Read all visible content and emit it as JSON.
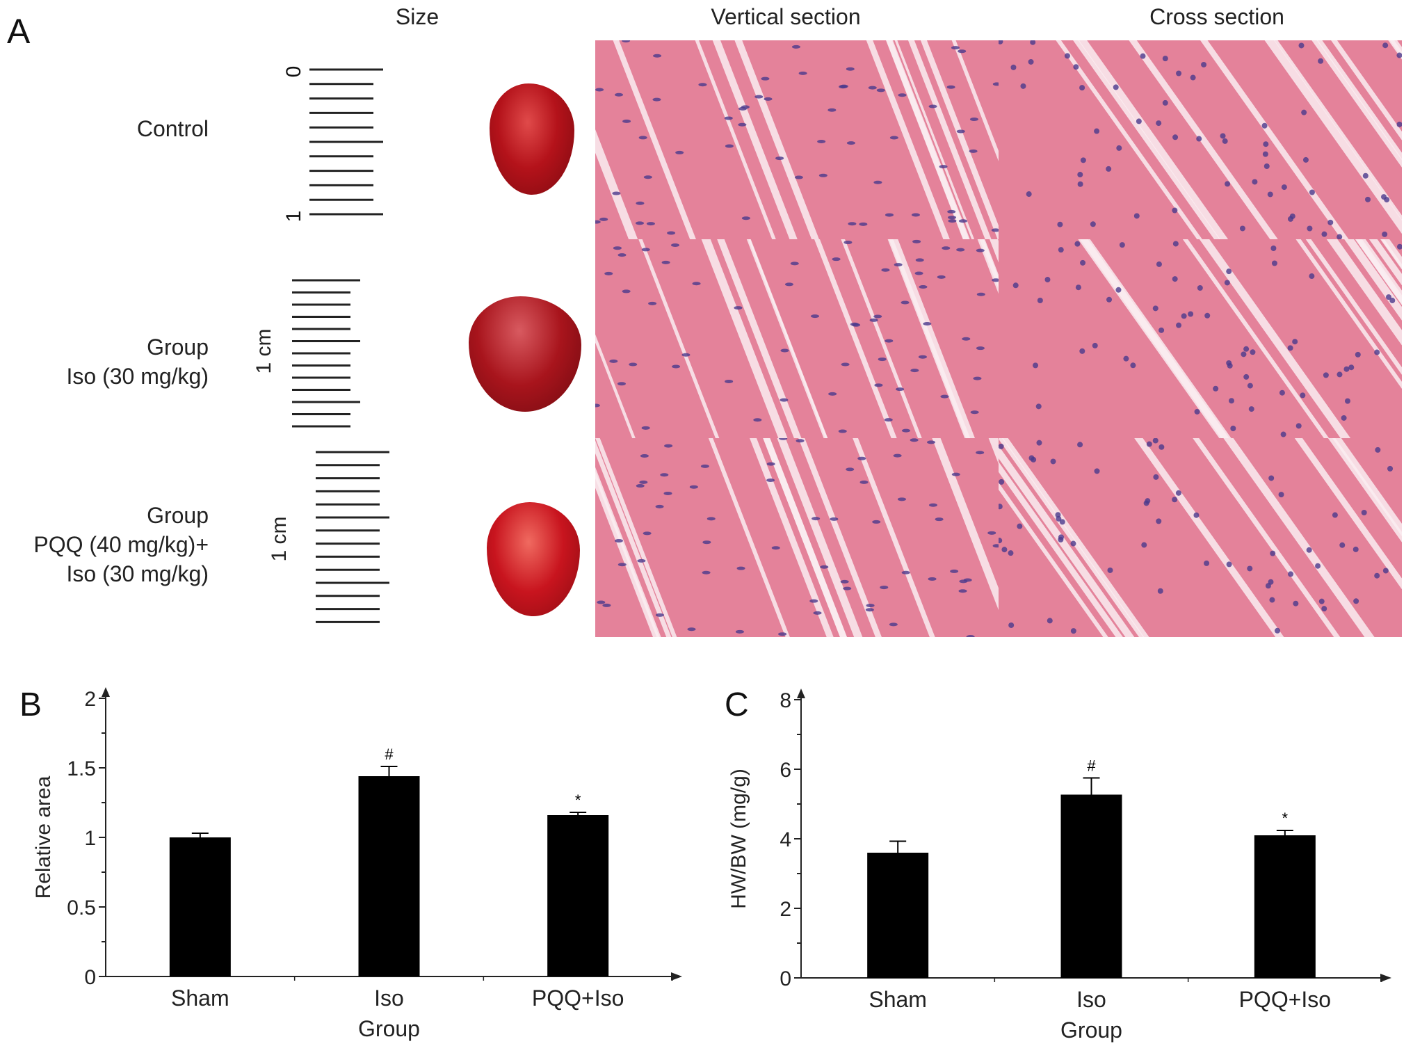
{
  "panel_a": {
    "letter": "A",
    "columns": [
      "Size",
      "Vertical section",
      "Cross section"
    ],
    "rows": [
      {
        "label_lines": [
          "Control"
        ]
      },
      {
        "label_lines": [
          "Group",
          "Iso (30 mg/kg)"
        ]
      },
      {
        "label_lines": [
          "Group",
          "PQQ (40 mg/kg)+",
          "Iso (30 mg/kg)"
        ]
      }
    ],
    "ruler_ticks": [
      "0",
      "1"
    ],
    "scale_labels": [
      "1 cm",
      "1 cm"
    ],
    "colors": {
      "heart_control": "#b4121a",
      "heart_iso": "#a8141c",
      "heart_pqq": "#c8141e",
      "tissue": "#e8879e",
      "nuclei": "#4a3a8c"
    }
  },
  "chart_data": [
    {
      "panel": "B",
      "type": "bar",
      "categories": [
        "Sham",
        "Iso",
        "PQQ+Iso"
      ],
      "values": [
        1.0,
        1.44,
        1.16
      ],
      "errors": [
        0.03,
        0.07,
        0.02
      ],
      "significance": [
        "",
        "#",
        "*"
      ],
      "xlabel": "Group",
      "ylabel": "Relative area",
      "ylim": [
        0,
        2
      ],
      "yticks": [
        "0",
        "0.5",
        "1",
        "1.5",
        "2"
      ],
      "bar_color": "#000000",
      "grid": false
    },
    {
      "panel": "C",
      "type": "bar",
      "categories": [
        "Sham",
        "Iso",
        "PQQ+Iso"
      ],
      "values": [
        3.6,
        5.27,
        4.1
      ],
      "errors": [
        0.33,
        0.48,
        0.14
      ],
      "significance": [
        "",
        "#",
        "*"
      ],
      "xlabel": "Group",
      "ylabel": "HW/BW (mg/g)",
      "ylim": [
        0,
        8
      ],
      "yticks": [
        "0",
        "2",
        "4",
        "6",
        "8"
      ],
      "bar_color": "#000000",
      "grid": false
    }
  ]
}
